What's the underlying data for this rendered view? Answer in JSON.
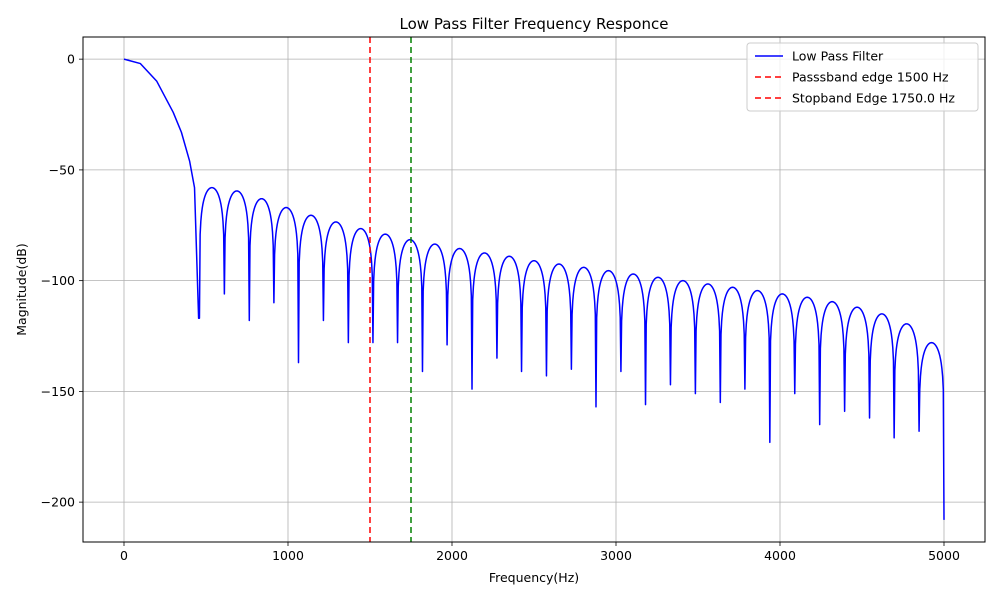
{
  "chart_data": {
    "type": "line",
    "title": "Low Pass Filter Frequency Responce",
    "xlabel": "Frequency(Hz)",
    "ylabel": "Magnitude(dB)",
    "xlim": [
      -250,
      5250
    ],
    "ylim": [
      -218,
      10
    ],
    "xticks": [
      0,
      1000,
      2000,
      3000,
      4000,
      5000
    ],
    "xtick_labels": [
      "0",
      "1000",
      "2000",
      "3000",
      "4000",
      "5000"
    ],
    "yticks": [
      0,
      -50,
      -100,
      -150,
      -200
    ],
    "ytick_labels": [
      "0",
      "−50",
      "−100",
      "−150",
      "−200"
    ],
    "grid": true,
    "legend_position": "top-right",
    "series": [
      {
        "name": "Low Pass Filter",
        "color": "#0000ff",
        "style": "solid",
        "passband": {
          "x": [
            0,
            100,
            200,
            300,
            350,
            400,
            430,
            455
          ],
          "y": [
            0,
            -2,
            -10,
            -24,
            -33,
            -46,
            -58,
            -117
          ]
        },
        "nulls": [
          {
            "x": 460,
            "y": -117
          },
          {
            "x": 612,
            "y": -106
          },
          {
            "x": 764,
            "y": -118
          },
          {
            "x": 914,
            "y": -110
          },
          {
            "x": 1064,
            "y": -137
          },
          {
            "x": 1216,
            "y": -118
          },
          {
            "x": 1368,
            "y": -128
          },
          {
            "x": 1518,
            "y": -128
          },
          {
            "x": 1668,
            "y": -128
          },
          {
            "x": 1820,
            "y": -141
          },
          {
            "x": 1970,
            "y": -129
          },
          {
            "x": 2122,
            "y": -149
          },
          {
            "x": 2274,
            "y": -135
          },
          {
            "x": 2424,
            "y": -141
          },
          {
            "x": 2576,
            "y": -143
          },
          {
            "x": 2728,
            "y": -140
          },
          {
            "x": 2878,
            "y": -157
          },
          {
            "x": 3030,
            "y": -141
          },
          {
            "x": 3180,
            "y": -156
          },
          {
            "x": 3332,
            "y": -147
          },
          {
            "x": 3484,
            "y": -151
          },
          {
            "x": 3636,
            "y": -155
          },
          {
            "x": 3786,
            "y": -149
          },
          {
            "x": 3938,
            "y": -173
          },
          {
            "x": 4090,
            "y": -151
          },
          {
            "x": 4242,
            "y": -165
          },
          {
            "x": 4394,
            "y": -159
          },
          {
            "x": 4546,
            "y": -162
          },
          {
            "x": 4696,
            "y": -171
          },
          {
            "x": 4848,
            "y": -168
          },
          {
            "x": 5000,
            "y": -208
          }
        ],
        "lobe_peaks": [
          -58,
          -59.5,
          -63,
          -67,
          -70.5,
          -73.5,
          -76.5,
          -79,
          -81.5,
          -83.5,
          -85.5,
          -87.5,
          -89,
          -91,
          -92.5,
          -94,
          -95.5,
          -97,
          -98.5,
          -100,
          -101.5,
          -103,
          -104.5,
          -106,
          -107.5,
          -109.5,
          -112,
          -115,
          -119.5,
          -128
        ]
      }
    ],
    "vlines": [
      {
        "name": "Passsband edge 1500 Hz",
        "x": 1500,
        "color": "#ff0000",
        "style": "dashed",
        "in_legend": true
      },
      {
        "name": "Stopband Edge 1750.0 Hz",
        "x": 1750,
        "color": "#008000",
        "style": "dashed",
        "legend_color": "#ff0000",
        "in_legend": true
      }
    ]
  }
}
